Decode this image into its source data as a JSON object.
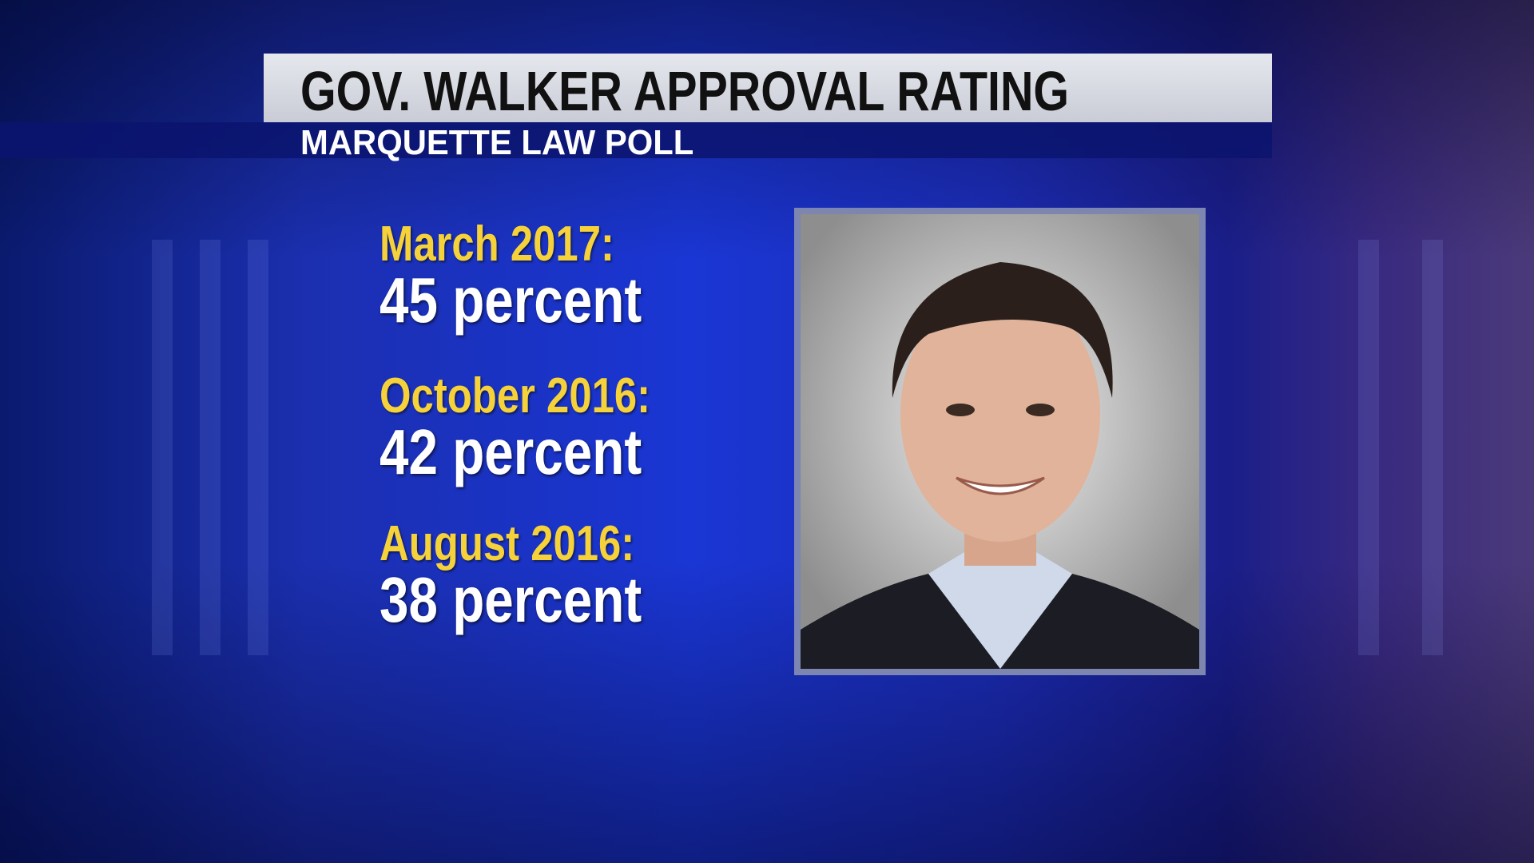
{
  "header": {
    "title": "GOV. WALKER APPROVAL RATING",
    "subtitle": "MARQUETTE LAW POLL"
  },
  "items": [
    {
      "date": "March 2017:",
      "value": "45 percent"
    },
    {
      "date": "October 2016:",
      "value": "42 percent"
    },
    {
      "date": "August 2016:",
      "value": "38 percent"
    }
  ]
}
